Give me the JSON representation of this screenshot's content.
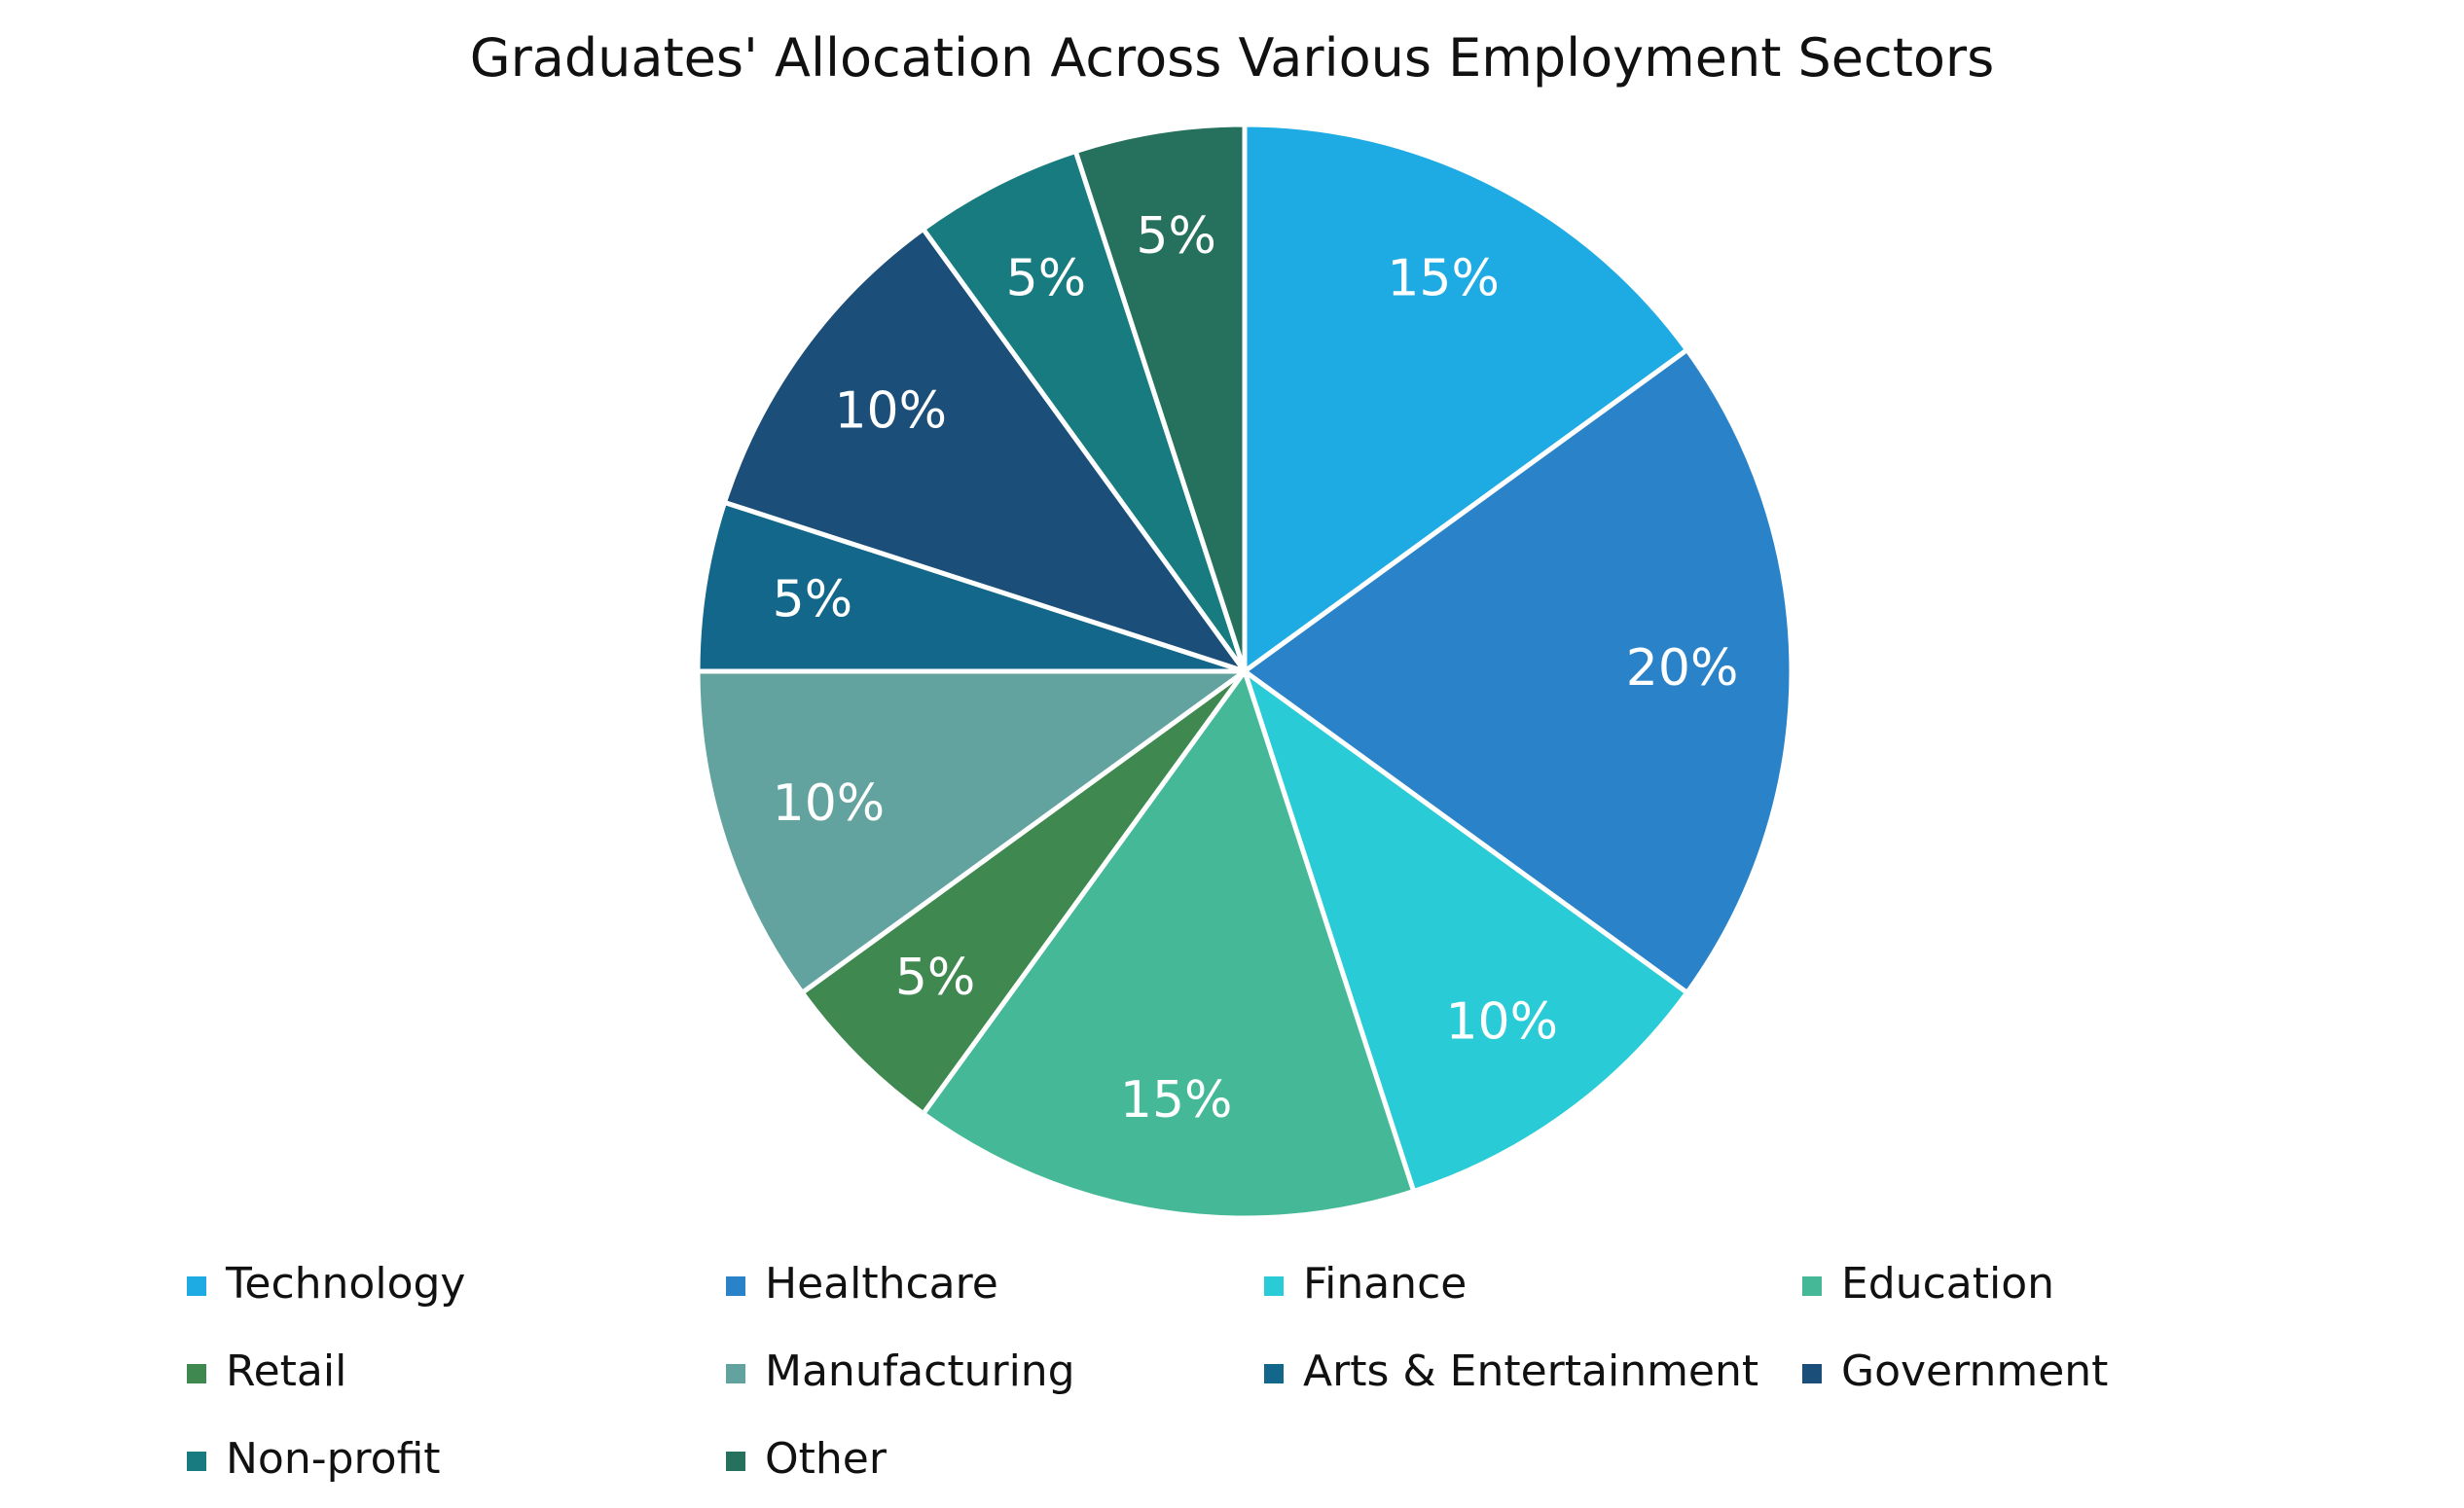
{
  "chart_data": {
    "type": "pie",
    "title": "Graduates' Allocation Across Various Employment Sectors",
    "categories": [
      "Technology",
      "Healthcare",
      "Finance",
      "Education",
      "Retail",
      "Manufacturing",
      "Arts & Entertainment",
      "Government",
      "Non-profit",
      "Other"
    ],
    "values": [
      15,
      20,
      10,
      15,
      5,
      10,
      5,
      10,
      5,
      5
    ],
    "data_labels": [
      "15%",
      "20%",
      "10%",
      "15%",
      "5%",
      "10%",
      "5%",
      "10%",
      "5%",
      "5%"
    ],
    "colors": [
      "#1eaae3",
      "#2a83c8",
      "#29cbd6",
      "#45b997",
      "#3f8950",
      "#63a39f",
      "#13678a",
      "#1b4e78",
      "#177b7f",
      "#26715d"
    ],
    "start_angle_deg": 0,
    "direction": "clockwise",
    "legend": {
      "position": "bottom",
      "columns": 4
    }
  }
}
